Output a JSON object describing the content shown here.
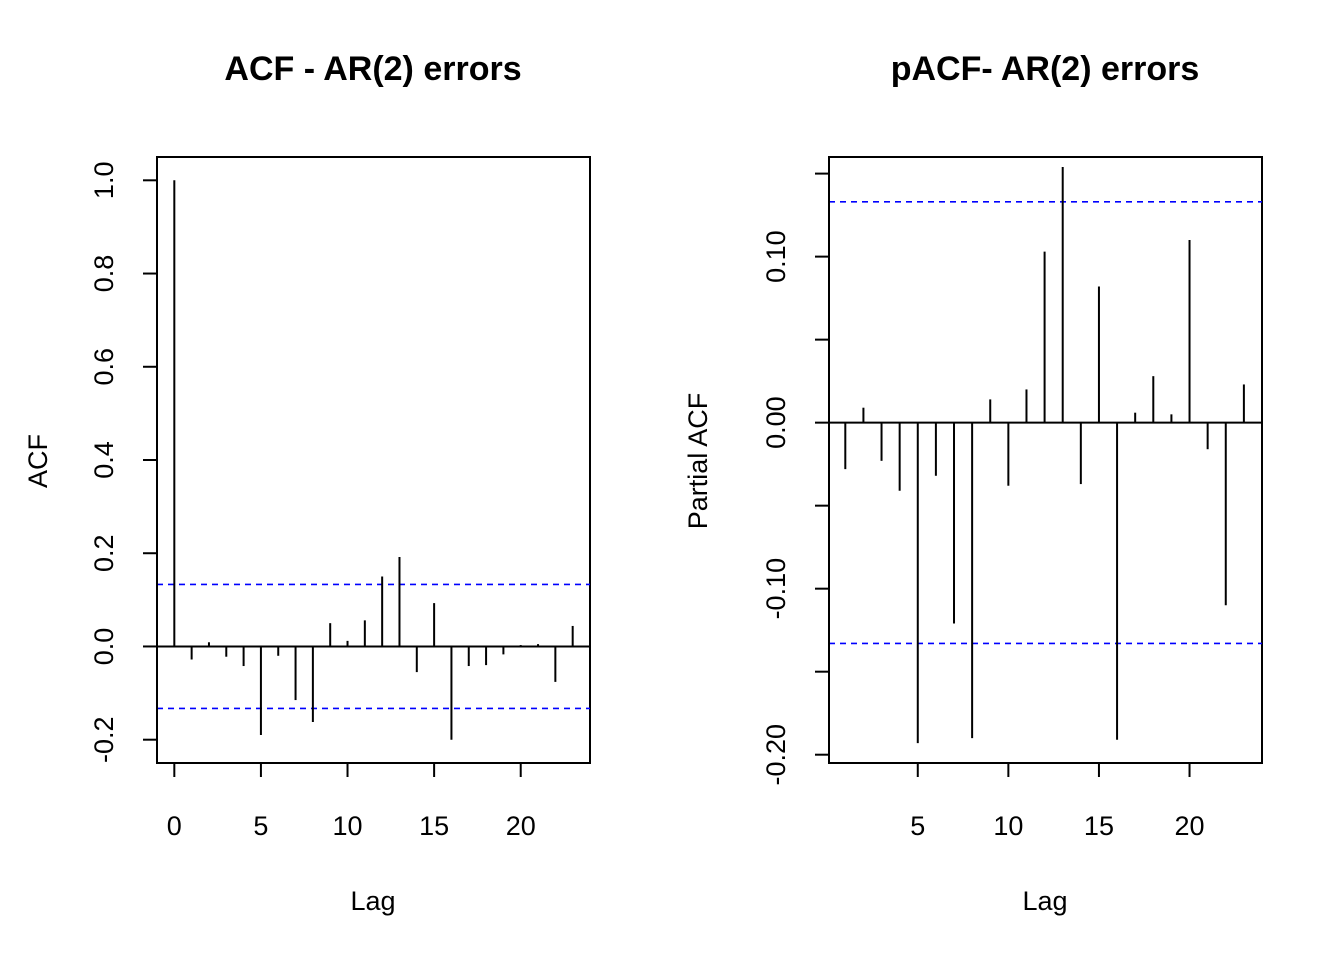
{
  "chart_data": [
    {
      "type": "bar",
      "title": "ACF - AR(2) errors",
      "xlabel": "Lag",
      "ylabel": "ACF",
      "xlim": [
        -1,
        24
      ],
      "ylim": [
        -0.25,
        1.05
      ],
      "x_ticks": [
        0,
        5,
        10,
        15,
        20
      ],
      "x_tick_labels": [
        "0",
        "5",
        "10",
        "15",
        "20"
      ],
      "y_ticks": [
        -0.2,
        0.0,
        0.2,
        0.4,
        0.6,
        0.8,
        1.0
      ],
      "y_tick_labels": [
        "-0.2",
        "0.0",
        "0.2",
        "0.4",
        "0.6",
        "0.8",
        "1.0"
      ],
      "confidence_bounds": [
        0.133,
        -0.133
      ],
      "bound_color": "#0000ff",
      "line_color": "#000000",
      "zero_line": true,
      "x": [
        0,
        1,
        2,
        3,
        4,
        5,
        6,
        7,
        8,
        9,
        10,
        11,
        12,
        13,
        14,
        15,
        16,
        17,
        18,
        19,
        20,
        21,
        22,
        23
      ],
      "values": [
        1.0,
        -0.028,
        0.009,
        -0.022,
        -0.042,
        -0.19,
        -0.02,
        -0.115,
        -0.162,
        0.05,
        0.012,
        0.056,
        0.15,
        0.192,
        -0.055,
        0.093,
        -0.2,
        -0.042,
        -0.04,
        -0.017,
        0.003,
        0.005,
        -0.076,
        0.044
      ]
    },
    {
      "type": "bar",
      "title": "pACF- AR(2) errors",
      "xlabel": "Lag",
      "ylabel": "Partial ACF",
      "xlim": [
        0.1,
        24
      ],
      "ylim": [
        -0.205,
        0.16
      ],
      "x_ticks": [
        5,
        10,
        15,
        20
      ],
      "x_tick_labels": [
        "5",
        "10",
        "15",
        "20"
      ],
      "y_ticks": [
        -0.2,
        -0.15,
        -0.1,
        -0.05,
        0.0,
        0.05,
        0.1,
        0.15
      ],
      "y_tick_labels": [
        "-0.20",
        "",
        "-0.10",
        "",
        "0.00",
        "",
        "0.10",
        ""
      ],
      "confidence_bounds": [
        0.133,
        -0.133
      ],
      "bound_color": "#0000ff",
      "line_color": "#000000",
      "zero_line": true,
      "x": [
        1,
        2,
        3,
        4,
        5,
        6,
        7,
        8,
        9,
        10,
        11,
        12,
        13,
        14,
        15,
        16,
        17,
        18,
        19,
        20,
        21,
        22,
        23
      ],
      "values": [
        -0.028,
        0.009,
        -0.023,
        -0.041,
        -0.193,
        -0.032,
        -0.121,
        -0.19,
        0.014,
        -0.038,
        0.02,
        0.103,
        0.154,
        -0.037,
        0.082,
        -0.191,
        0.006,
        0.028,
        0.005,
        0.11,
        -0.016,
        -0.11,
        0.023
      ]
    }
  ]
}
